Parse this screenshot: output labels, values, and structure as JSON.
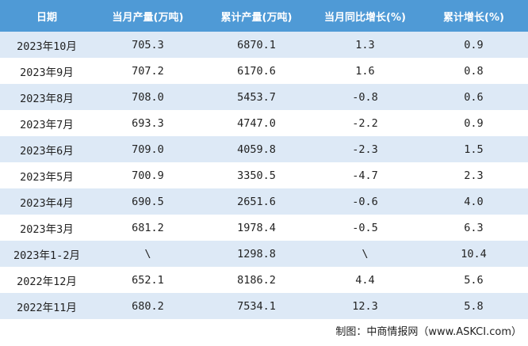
{
  "table": {
    "columns": [
      "日期",
      "当月产量(万吨)",
      "累计产量(万吨)",
      "当月同比增长(%)",
      "累计增长(%)"
    ],
    "rows": [
      [
        "2023年10月",
        "705.3",
        "6870.1",
        "1.3",
        "0.9"
      ],
      [
        "2023年9月",
        "707.2",
        "6170.6",
        "1.6",
        "0.8"
      ],
      [
        "2023年8月",
        "708.0",
        "5453.7",
        "-0.8",
        "0.6"
      ],
      [
        "2023年7月",
        "693.3",
        "4747.0",
        "-2.2",
        "0.9"
      ],
      [
        "2023年6月",
        "709.0",
        "4059.8",
        "-2.3",
        "1.5"
      ],
      [
        "2023年5月",
        "700.9",
        "3350.5",
        "-4.7",
        "2.3"
      ],
      [
        "2023年4月",
        "690.5",
        "2651.6",
        "-0.6",
        "4.0"
      ],
      [
        "2023年3月",
        "681.2",
        "1978.4",
        "-0.5",
        "6.3"
      ],
      [
        "2023年1-2月",
        "\\",
        "1298.8",
        "\\",
        "10.4"
      ],
      [
        "2022年12月",
        "652.1",
        "8186.2",
        "4.4",
        "5.6"
      ],
      [
        "2022年11月",
        "680.2",
        "7534.1",
        "12.3",
        "5.8"
      ]
    ]
  },
  "footer": {
    "source": "制图：中商情报网（www.ASKCI.com）"
  }
}
